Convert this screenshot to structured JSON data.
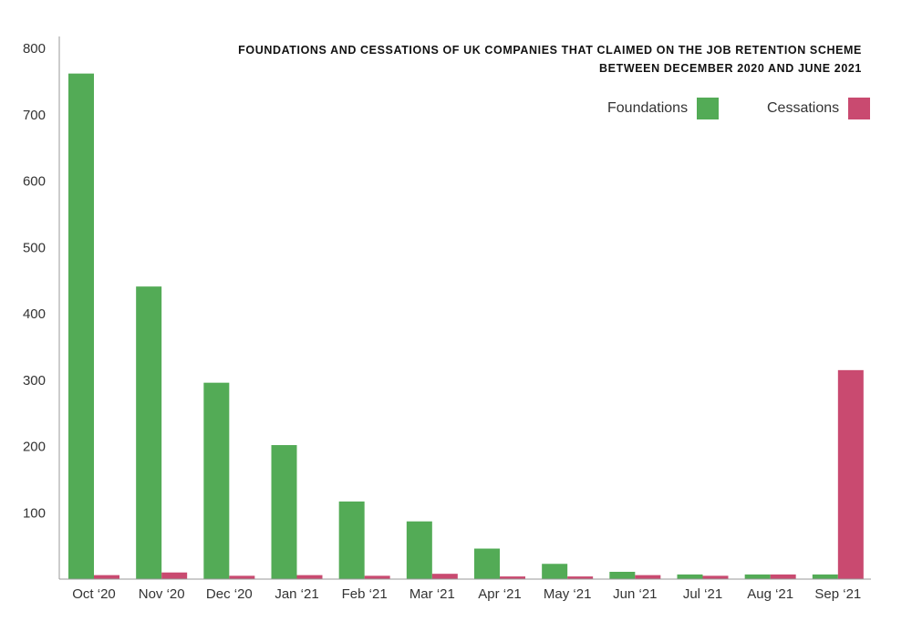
{
  "chart_data": {
    "type": "bar",
    "title": "FOUNDATIONS AND CESSATIONS OF UK COMPANIES THAT CLAIMED ON THE JOB RETENTION SCHEME",
    "subtitle": "BETWEEN DECEMBER 2020 AND JUNE 2021",
    "xlabel": "",
    "ylabel": "",
    "categories": [
      "Oct ‘20",
      "Nov ‘20",
      "Dec ‘20",
      "Jan ‘21",
      "Feb ‘21",
      "Mar ‘21",
      "Apr ‘21",
      "May ‘21",
      "Jun ‘21",
      "Jul ‘21",
      "Aug ‘21",
      "Sep ‘21"
    ],
    "series": [
      {
        "name": "Foundations",
        "color": "#53ab56",
        "values": [
          762,
          441,
          296,
          202,
          117,
          87,
          46,
          23,
          11,
          7,
          7,
          7
        ]
      },
      {
        "name": "Cessations",
        "color": "#c94a70",
        "values": [
          6,
          10,
          5,
          6,
          5,
          8,
          4,
          4,
          6,
          5,
          7,
          315
        ]
      }
    ],
    "ylim": [
      0,
      800
    ],
    "yticks": [
      100,
      200,
      300,
      400,
      500,
      600,
      700,
      800
    ],
    "grid": false,
    "legend_position": "top-right"
  }
}
